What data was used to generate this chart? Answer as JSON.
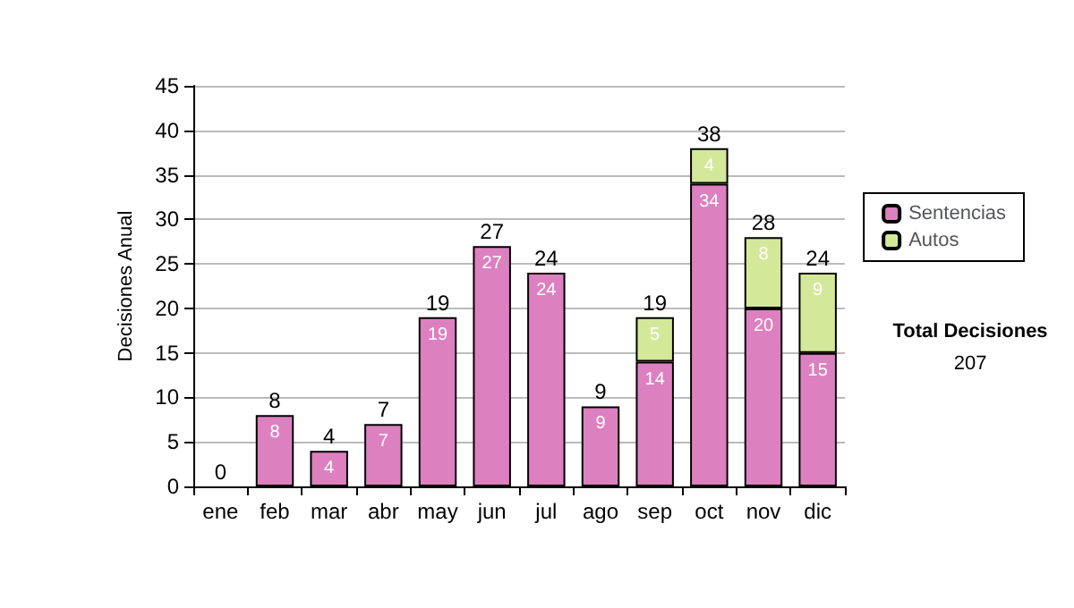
{
  "chart_data": {
    "type": "bar",
    "ylabel": "Decisiones Anual",
    "categories": [
      "ene",
      "feb",
      "mar",
      "abr",
      "may",
      "jun",
      "jul",
      "ago",
      "sep",
      "oct",
      "nov",
      "dic"
    ],
    "stacked": true,
    "series": [
      {
        "name": "Sentencias",
        "color": "#dd80c0",
        "values": [
          0,
          8,
          4,
          7,
          19,
          27,
          24,
          9,
          14,
          34,
          20,
          15
        ],
        "value_labels": [
          null,
          "8",
          "4",
          "7",
          "19",
          "27",
          "24",
          "9",
          "14",
          "34",
          "20",
          "15"
        ]
      },
      {
        "name": "Autos",
        "color": "#d4e89a",
        "values": [
          null,
          null,
          null,
          null,
          null,
          null,
          null,
          null,
          5,
          4,
          8,
          9
        ],
        "value_labels": [
          null,
          null,
          null,
          null,
          null,
          null,
          null,
          null,
          "5",
          "4",
          "8",
          "9"
        ]
      }
    ],
    "totals": [
      "0",
      "8",
      "4",
      "7",
      "19",
      "27",
      "24",
      "9",
      "19",
      "38",
      "28",
      "24"
    ],
    "ylim": [
      0,
      45
    ],
    "yticks": [
      0,
      5,
      10,
      15,
      20,
      25,
      30,
      35,
      40,
      45
    ],
    "grid": "y",
    "legend": "right",
    "annotations": [
      "Total Decisiones",
      "207"
    ]
  }
}
